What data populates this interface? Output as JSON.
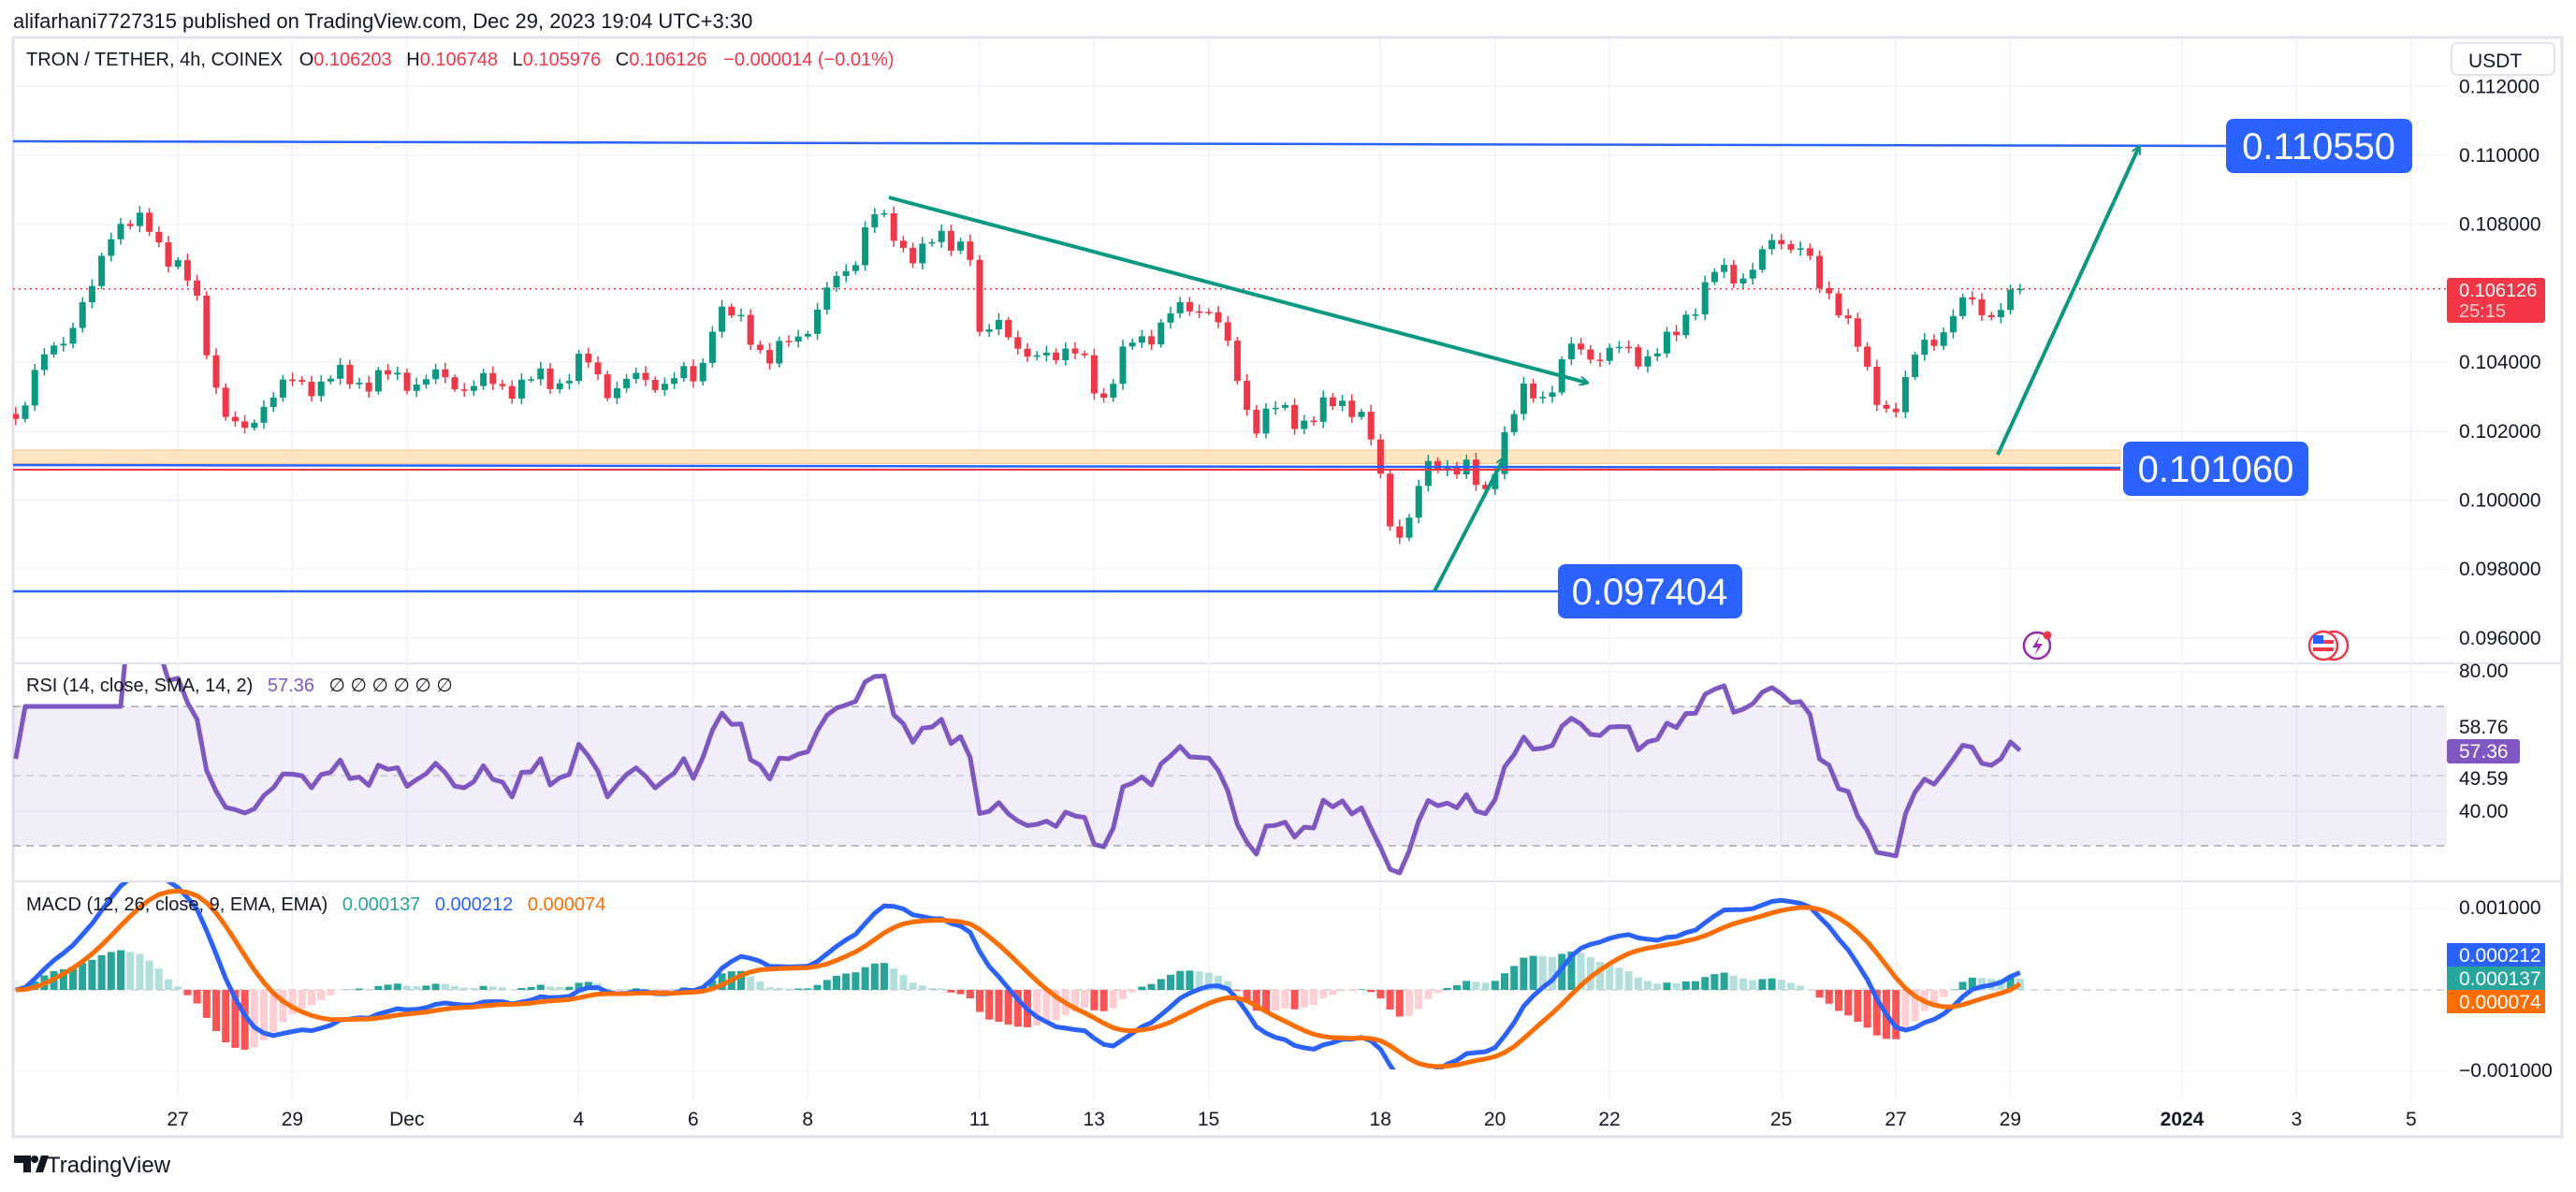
{
  "header": {
    "published": "alifarhani7727315 published on TradingView.com, Dec 29, 2023 19:04 UTC+3:30"
  },
  "legend": {
    "symbol": "TRON / TETHER, 4h, COINEX",
    "o_label": "O",
    "o": "0.106203",
    "h_label": "H",
    "h": "0.106748",
    "l_label": "L",
    "l": "0.105976",
    "c_label": "C",
    "c": "0.106126",
    "change": "−0.000014 (−0.01%)"
  },
  "currency_button": "USDT",
  "price_axis": [
    "0.112000",
    "0.110000",
    "0.108000",
    "0.104000",
    "0.102000",
    "0.100000",
    "0.098000",
    "0.096000"
  ],
  "current_price": {
    "value": "0.106126",
    "countdown": "25:15"
  },
  "annotations": {
    "top_level": "0.110550",
    "support_level": "0.101060",
    "low_level": "0.097404"
  },
  "rsi": {
    "title": "RSI (14, close, SMA, 14, 2)",
    "value": "57.36",
    "na": "∅ ∅ ∅ ∅ ∅ ∅",
    "axis": [
      "80.00",
      "58.76",
      "49.59",
      "40.00"
    ]
  },
  "macd": {
    "title": "MACD (12, 26, close, 9, EMA, EMA)",
    "hist": "0.000137",
    "macd": "0.000212",
    "signal": "0.000074",
    "axis": [
      "0.001000",
      "−0.001000"
    ]
  },
  "x_axis": [
    "27",
    "29",
    "Dec",
    "4",
    "6",
    "8",
    "11",
    "13",
    "15",
    "18",
    "20",
    "22",
    "25",
    "27",
    "29",
    "2024",
    "3",
    "5"
  ],
  "footer": {
    "brand": "TradingView"
  },
  "colors": {
    "up": "#089981",
    "down": "#f23645",
    "blue": "#2962ff",
    "rsi": "#7e57c2",
    "orange": "#ff6d00",
    "teal": "#26a69a"
  },
  "chart_data": {
    "type": "candlestick",
    "title": "TRON / TETHER, 4h, COINEX",
    "interval_days": 0.1666667,
    "x_unit": "days since Nov 27 2023",
    "ylim": [
      0.0955,
      0.1125
    ],
    "price_keypoints": [
      [
        -2.83,
        0.1025
      ],
      [
        -2.34,
        0.104
      ],
      [
        -1.49,
        0.106
      ],
      [
        -1.11,
        0.1082
      ],
      [
        -0.49,
        0.1078
      ],
      [
        -0.06,
        0.107
      ],
      [
        0.31,
        0.1058
      ],
      [
        0.6,
        0.1038
      ],
      [
        0.94,
        0.102
      ],
      [
        1.23,
        0.1019
      ],
      [
        1.51,
        0.103
      ],
      [
        1.94,
        0.1033
      ],
      [
        2.66,
        0.1035
      ],
      [
        4.37,
        0.1035
      ],
      [
        5.51,
        0.1033
      ],
      [
        6.66,
        0.1035
      ],
      [
        7.09,
        0.104
      ],
      [
        7.51,
        0.1033
      ],
      [
        8.37,
        0.1035
      ],
      [
        9.09,
        0.1035
      ],
      [
        9.37,
        0.1055
      ],
      [
        9.94,
        0.105
      ],
      [
        10.37,
        0.104
      ],
      [
        10.94,
        0.105
      ],
      [
        11.37,
        0.106
      ],
      [
        11.8,
        0.107
      ],
      [
        12.09,
        0.1083
      ],
      [
        12.51,
        0.1077
      ],
      [
        12.94,
        0.107
      ],
      [
        13.37,
        0.1077
      ],
      [
        13.8,
        0.1075
      ],
      [
        14.0,
        0.1045
      ],
      [
        14.37,
        0.1055
      ],
      [
        14.8,
        0.1038
      ],
      [
        15.23,
        0.1045
      ],
      [
        15.8,
        0.104
      ],
      [
        16.14,
        0.103
      ],
      [
        16.66,
        0.1045
      ],
      [
        17.23,
        0.1052
      ],
      [
        17.94,
        0.1058
      ],
      [
        18.23,
        0.1048
      ],
      [
        18.51,
        0.1035
      ],
      [
        18.8,
        0.1022
      ],
      [
        19.23,
        0.1026
      ],
      [
        19.8,
        0.1023
      ],
      [
        20.37,
        0.103
      ],
      [
        20.66,
        0.1025
      ],
      [
        20.94,
        0.101
      ],
      [
        21.23,
        0.099
      ],
      [
        21.51,
        0.0995
      ],
      [
        21.8,
        0.1008
      ],
      [
        22.09,
        0.1012
      ],
      [
        22.51,
        0.1008
      ],
      [
        22.8,
        0.1
      ],
      [
        23.09,
        0.1017
      ],
      [
        23.51,
        0.103
      ],
      [
        23.94,
        0.1032
      ],
      [
        24.31,
        0.1043
      ],
      [
        24.8,
        0.1043
      ],
      [
        25.51,
        0.1042
      ],
      [
        26.09,
        0.1045
      ],
      [
        26.37,
        0.1055
      ],
      [
        26.8,
        0.1065
      ],
      [
        27.23,
        0.1065
      ],
      [
        27.66,
        0.107
      ],
      [
        27.94,
        0.1075
      ],
      [
        28.37,
        0.1075
      ],
      [
        28.66,
        0.106
      ],
      [
        29.09,
        0.1057
      ],
      [
        29.37,
        0.1043
      ],
      [
        29.57,
        0.103
      ],
      [
        29.8,
        0.1027
      ],
      [
        30.09,
        0.103
      ],
      [
        30.37,
        0.1042
      ],
      [
        30.8,
        0.105
      ],
      [
        31.23,
        0.1057
      ],
      [
        31.66,
        0.1055
      ],
      [
        32.09,
        0.1058
      ],
      [
        32.31,
        0.106126
      ]
    ],
    "levels": {
      "resistance": 0.11055,
      "support": 0.10106,
      "low": 0.097404,
      "zone": [
        0.10106,
        0.10145
      ]
    },
    "rsi_range": [
      20,
      85
    ],
    "rsi_bands": [
      70,
      50,
      30
    ],
    "macd_range": [
      -0.00125,
      0.00125
    ]
  }
}
